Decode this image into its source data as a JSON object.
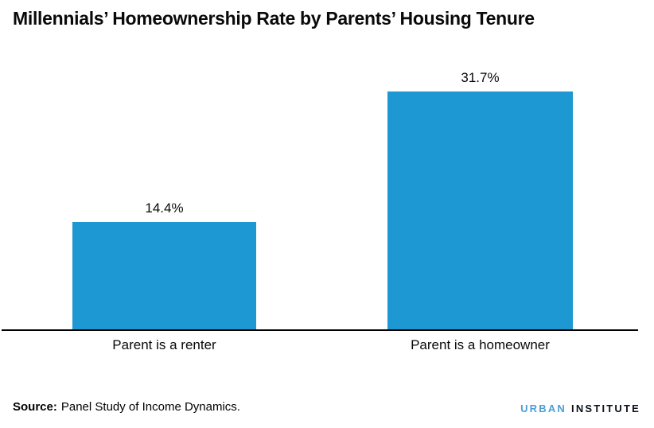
{
  "title": "Millennials’ Homeownership Rate by Parents’ Housing Tenure",
  "chart_data": {
    "type": "bar",
    "title": "Millennials’ Homeownership Rate by Parents’ Housing Tenure",
    "categories": [
      "Parent is a renter",
      "Parent is a homeowner"
    ],
    "values": [
      14.4,
      31.7
    ],
    "value_labels": [
      "14.4%",
      "31.7%"
    ],
    "unit": "percent",
    "ylim": [
      0,
      35
    ],
    "grid": false,
    "legend": "none",
    "y_axis_shown": false,
    "bar_color": "#1e98d3",
    "axis_color": "#000000"
  },
  "source": {
    "label": "Source:",
    "text": "Panel Study of Income Dynamics."
  },
  "logo": {
    "urban": "URBAN",
    "institute": "INSTITUTE",
    "urban_color": "#4a9ed6",
    "institute_color": "#0d1117"
  }
}
